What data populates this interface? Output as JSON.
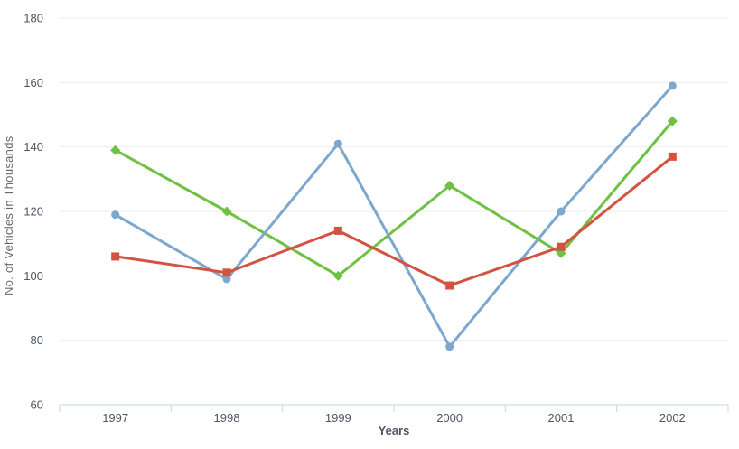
{
  "chart_data": {
    "type": "line",
    "title": "",
    "xlabel": "Years",
    "ylabel": "No. of Vehicles in Thousands",
    "categories": [
      "1997",
      "1998",
      "1999",
      "2000",
      "2001",
      "2002"
    ],
    "series": [
      {
        "name": "green-diamond-series",
        "marker": "diamond",
        "color": "#6FC142",
        "values": [
          139,
          120,
          100,
          128,
          107,
          148
        ]
      },
      {
        "name": "blue-circle-series",
        "marker": "circle",
        "color": "#7CA7CE",
        "values": [
          119,
          99,
          141,
          78,
          120,
          159
        ]
      },
      {
        "name": "red-square-series",
        "marker": "square",
        "color": "#D35240",
        "values": [
          106,
          101,
          114,
          97,
          109,
          137
        ]
      }
    ],
    "ylim": [
      60,
      180
    ],
    "ytick_step": 20,
    "yticks": [
      60,
      80,
      100,
      120,
      140,
      160,
      180
    ],
    "grid": "horizontal",
    "legend": "none",
    "colors": {
      "grid_line": "#ededed",
      "axis_line": "#c6d4e6",
      "tick_label": "#4d5663",
      "axis_title": "#67696f",
      "background": "#ffffff"
    }
  }
}
